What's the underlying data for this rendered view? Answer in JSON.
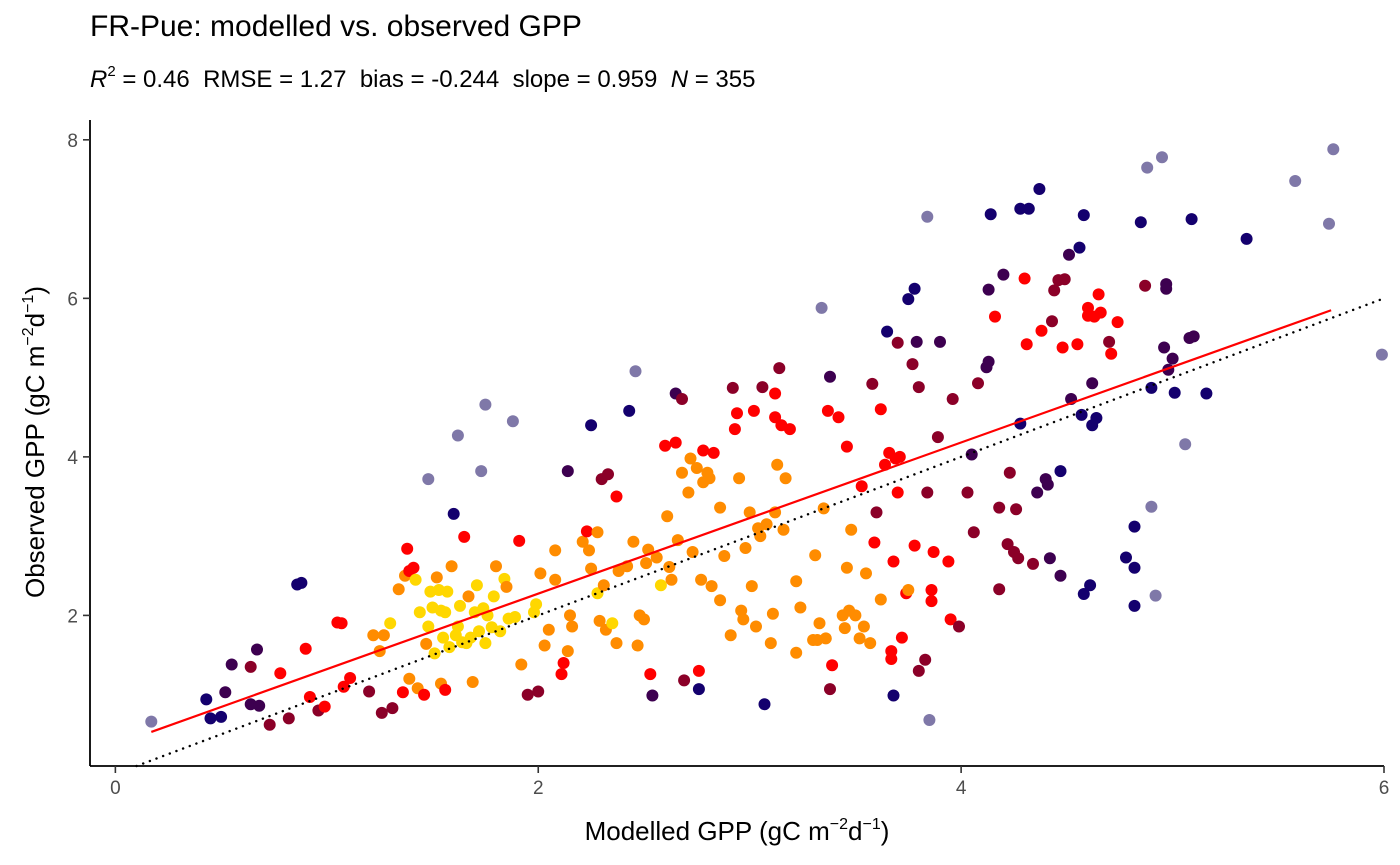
{
  "chart_data": {
    "type": "scatter",
    "title": "FR-Pue: modelled vs. observed GPP",
    "subtitle": {
      "r2_symbol": "R",
      "r2_sup": "2",
      "r2_value": " = 0.46  RMSE = 1.27  bias = -0.244  slope = 0.959  ",
      "n_symbol": "N",
      "n_value": " = 355"
    },
    "xlabel": {
      "text": "Modelled GPP (gC m",
      "sup1": "−2",
      "mid": "d",
      "sup2": "−1",
      "end": ")"
    },
    "ylabel": {
      "text": "Observed GPP (gC m",
      "sup1": "−2",
      "mid": "d",
      "sup2": "−1",
      "end": ")"
    },
    "xlim": [
      -0.12,
      6.0
    ],
    "ylim": [
      0.1,
      8.25
    ],
    "xticks": [
      "0",
      "2",
      "4",
      "6"
    ],
    "yticks": [
      "2",
      "4",
      "6",
      "8"
    ],
    "grid": false,
    "legend": "none",
    "colors": {
      "point_scale": [
        "#FFD700",
        "#FF8C00",
        "#FF0000",
        "#8B0028",
        "#3D0050",
        "#14006E",
        "#7F78A8"
      ],
      "fit_line": "#FF0000",
      "identity_line": "#000000"
    },
    "fit_line": {
      "x": [
        0.17,
        5.75
      ],
      "y": [
        0.53,
        5.85
      ]
    },
    "identity_line": {
      "x": [
        0.0,
        6.0
      ],
      "y": [
        0.0,
        6.0
      ]
    },
    "points": [
      [
        0.17,
        0.66,
        6
      ],
      [
        0.43,
        0.94,
        5
      ],
      [
        0.45,
        0.7,
        5
      ],
      [
        0.5,
        0.72,
        5
      ],
      [
        0.52,
        1.03,
        4
      ],
      [
        0.55,
        1.38,
        4
      ],
      [
        0.64,
        1.35,
        3
      ],
      [
        0.64,
        0.88,
        4
      ],
      [
        0.67,
        1.57,
        4
      ],
      [
        0.68,
        0.86,
        4
      ],
      [
        0.73,
        0.62,
        3
      ],
      [
        0.78,
        1.27,
        2
      ],
      [
        0.82,
        0.7,
        3
      ],
      [
        0.86,
        2.39,
        5
      ],
      [
        0.88,
        2.41,
        5
      ],
      [
        0.9,
        1.58,
        2
      ],
      [
        0.92,
        0.97,
        2
      ],
      [
        0.96,
        0.8,
        3
      ],
      [
        0.99,
        0.85,
        2
      ],
      [
        1.05,
        1.91,
        2
      ],
      [
        1.07,
        1.9,
        2
      ],
      [
        1.08,
        1.1,
        2
      ],
      [
        1.11,
        1.21,
        2
      ],
      [
        1.2,
        1.04,
        3
      ],
      [
        1.22,
        1.75,
        1
      ],
      [
        1.25,
        1.55,
        1
      ],
      [
        1.26,
        0.77,
        3
      ],
      [
        1.27,
        1.75,
        1
      ],
      [
        1.3,
        1.9,
        0
      ],
      [
        1.31,
        0.83,
        3
      ],
      [
        1.34,
        2.33,
        1
      ],
      [
        1.36,
        1.03,
        2
      ],
      [
        1.37,
        2.5,
        1
      ],
      [
        1.38,
        2.84,
        2
      ],
      [
        1.39,
        1.2,
        1
      ],
      [
        1.39,
        2.56,
        2
      ],
      [
        1.41,
        2.6,
        2
      ],
      [
        1.42,
        2.45,
        0
      ],
      [
        1.43,
        1.08,
        1
      ],
      [
        1.44,
        2.04,
        0
      ],
      [
        1.46,
        1.0,
        2
      ],
      [
        1.47,
        1.64,
        1
      ],
      [
        1.48,
        1.86,
        0
      ],
      [
        1.48,
        3.72,
        6
      ],
      [
        1.49,
        2.3,
        0
      ],
      [
        1.5,
        2.1,
        0
      ],
      [
        1.51,
        1.52,
        0
      ],
      [
        1.52,
        2.48,
        1
      ],
      [
        1.53,
        2.32,
        0
      ],
      [
        1.54,
        1.14,
        1
      ],
      [
        1.54,
        2.06,
        0
      ],
      [
        1.55,
        1.72,
        0
      ],
      [
        1.56,
        2.04,
        0
      ],
      [
        1.56,
        1.06,
        2
      ],
      [
        1.57,
        2.3,
        0
      ],
      [
        1.58,
        1.6,
        0
      ],
      [
        1.59,
        2.62,
        1
      ],
      [
        1.6,
        3.28,
        5
      ],
      [
        1.61,
        1.75,
        0
      ],
      [
        1.62,
        4.27,
        6
      ],
      [
        1.62,
        1.86,
        0
      ],
      [
        1.63,
        2.12,
        0
      ],
      [
        1.64,
        1.66,
        0
      ],
      [
        1.65,
        2.99,
        2
      ],
      [
        1.66,
        1.65,
        0
      ],
      [
        1.67,
        2.24,
        1
      ],
      [
        1.68,
        1.72,
        0
      ],
      [
        1.69,
        1.16,
        1
      ],
      [
        1.7,
        2.04,
        0
      ],
      [
        1.71,
        2.38,
        0
      ],
      [
        1.72,
        1.8,
        0
      ],
      [
        1.73,
        3.82,
        6
      ],
      [
        1.74,
        2.09,
        0
      ],
      [
        1.75,
        4.66,
        6
      ],
      [
        1.75,
        1.65,
        0
      ],
      [
        1.76,
        2.0,
        0
      ],
      [
        1.78,
        1.85,
        0
      ],
      [
        1.79,
        2.24,
        0
      ],
      [
        1.8,
        2.62,
        1
      ],
      [
        1.82,
        1.8,
        0
      ],
      [
        1.84,
        2.46,
        0
      ],
      [
        1.85,
        2.36,
        1
      ],
      [
        1.86,
        1.96,
        0
      ],
      [
        1.88,
        4.45,
        6
      ],
      [
        1.89,
        1.98,
        0
      ],
      [
        1.91,
        2.94,
        2
      ],
      [
        1.92,
        1.38,
        1
      ],
      [
        1.95,
        1.0,
        3
      ],
      [
        1.98,
        2.04,
        0
      ],
      [
        1.99,
        2.14,
        0
      ],
      [
        2.0,
        1.04,
        3
      ],
      [
        2.01,
        2.53,
        1
      ],
      [
        2.03,
        1.62,
        1
      ],
      [
        2.05,
        1.82,
        1
      ],
      [
        2.08,
        2.45,
        1
      ],
      [
        2.08,
        2.82,
        1
      ],
      [
        2.11,
        1.26,
        2
      ],
      [
        2.12,
        1.4,
        2
      ],
      [
        2.14,
        3.82,
        4
      ],
      [
        2.14,
        1.55,
        1
      ],
      [
        2.15,
        2.0,
        1
      ],
      [
        2.16,
        1.86,
        1
      ],
      [
        2.21,
        2.93,
        1
      ],
      [
        2.23,
        3.06,
        2
      ],
      [
        2.24,
        2.82,
        1
      ],
      [
        2.25,
        4.4,
        5
      ],
      [
        2.25,
        2.59,
        1
      ],
      [
        2.28,
        3.05,
        1
      ],
      [
        2.28,
        2.28,
        0
      ],
      [
        2.29,
        1.93,
        1
      ],
      [
        2.3,
        3.72,
        3
      ],
      [
        2.31,
        2.38,
        1
      ],
      [
        2.32,
        1.82,
        1
      ],
      [
        2.33,
        3.78,
        3
      ],
      [
        2.35,
        1.9,
        0
      ],
      [
        2.37,
        3.5,
        2
      ],
      [
        2.37,
        1.65,
        1
      ],
      [
        2.38,
        2.56,
        1
      ],
      [
        2.42,
        2.62,
        1
      ],
      [
        2.43,
        4.58,
        5
      ],
      [
        2.45,
        2.93,
        1
      ],
      [
        2.46,
        5.08,
        6
      ],
      [
        2.47,
        1.62,
        1
      ],
      [
        2.48,
        2.0,
        1
      ],
      [
        2.5,
        1.95,
        1
      ],
      [
        2.51,
        2.66,
        1
      ],
      [
        2.52,
        2.83,
        1
      ],
      [
        2.53,
        1.26,
        2
      ],
      [
        2.54,
        0.99,
        4
      ],
      [
        2.56,
        2.73,
        1
      ],
      [
        2.58,
        2.38,
        0
      ],
      [
        2.6,
        4.14,
        2
      ],
      [
        2.61,
        3.25,
        1
      ],
      [
        2.62,
        2.61,
        1
      ],
      [
        2.63,
        2.45,
        1
      ],
      [
        2.65,
        4.18,
        2
      ],
      [
        2.65,
        4.8,
        4
      ],
      [
        2.66,
        2.95,
        1
      ],
      [
        2.68,
        3.8,
        1
      ],
      [
        2.68,
        4.73,
        3
      ],
      [
        2.69,
        1.18,
        3
      ],
      [
        2.71,
        3.55,
        1
      ],
      [
        2.72,
        3.98,
        1
      ],
      [
        2.73,
        2.8,
        1
      ],
      [
        2.75,
        3.86,
        1
      ],
      [
        2.76,
        1.3,
        2
      ],
      [
        2.76,
        1.07,
        5
      ],
      [
        2.77,
        2.45,
        1
      ],
      [
        2.78,
        3.68,
        1
      ],
      [
        2.78,
        4.08,
        2
      ],
      [
        2.8,
        3.8,
        1
      ],
      [
        2.81,
        3.73,
        1
      ],
      [
        2.82,
        2.37,
        1
      ],
      [
        2.83,
        4.05,
        2
      ],
      [
        2.86,
        3.36,
        1
      ],
      [
        2.86,
        2.19,
        1
      ],
      [
        2.88,
        2.75,
        1
      ],
      [
        2.91,
        1.75,
        1
      ],
      [
        2.92,
        4.87,
        3
      ],
      [
        2.93,
        4.35,
        2
      ],
      [
        2.94,
        4.55,
        2
      ],
      [
        2.95,
        3.73,
        1
      ],
      [
        2.96,
        2.06,
        1
      ],
      [
        2.97,
        1.95,
        1
      ],
      [
        2.98,
        2.85,
        1
      ],
      [
        3.0,
        3.3,
        1
      ],
      [
        3.01,
        2.37,
        1
      ],
      [
        3.02,
        4.58,
        2
      ],
      [
        3.03,
        1.86,
        1
      ],
      [
        3.04,
        3.1,
        1
      ],
      [
        3.05,
        3.0,
        1
      ],
      [
        3.06,
        4.88,
        3
      ],
      [
        3.07,
        0.88,
        5
      ],
      [
        3.08,
        3.15,
        1
      ],
      [
        3.1,
        1.65,
        1
      ],
      [
        3.11,
        2.02,
        1
      ],
      [
        3.12,
        4.8,
        2
      ],
      [
        3.12,
        4.5,
        2
      ],
      [
        3.12,
        3.3,
        1
      ],
      [
        3.13,
        3.9,
        1
      ],
      [
        3.14,
        5.12,
        3
      ],
      [
        3.15,
        4.4,
        2
      ],
      [
        3.16,
        3.08,
        1
      ],
      [
        3.17,
        3.73,
        1
      ],
      [
        3.19,
        4.35,
        2
      ],
      [
        3.22,
        2.43,
        1
      ],
      [
        3.22,
        1.53,
        1
      ],
      [
        3.24,
        2.1,
        1
      ],
      [
        3.3,
        1.69,
        1
      ],
      [
        3.31,
        2.76,
        1
      ],
      [
        3.32,
        1.69,
        1
      ],
      [
        3.33,
        1.9,
        1
      ],
      [
        3.34,
        5.88,
        6
      ],
      [
        3.35,
        3.35,
        1
      ],
      [
        3.36,
        1.71,
        1
      ],
      [
        3.37,
        4.58,
        2
      ],
      [
        3.38,
        5.01,
        4
      ],
      [
        3.38,
        1.07,
        3
      ],
      [
        3.39,
        1.37,
        2
      ],
      [
        3.42,
        4.5,
        2
      ],
      [
        3.44,
        2.0,
        1
      ],
      [
        3.45,
        1.84,
        1
      ],
      [
        3.46,
        2.6,
        1
      ],
      [
        3.46,
        4.13,
        2
      ],
      [
        3.47,
        2.06,
        1
      ],
      [
        3.48,
        3.08,
        1
      ],
      [
        3.5,
        2.0,
        1
      ],
      [
        3.52,
        1.71,
        1
      ],
      [
        3.53,
        3.63,
        2
      ],
      [
        3.54,
        1.86,
        1
      ],
      [
        3.55,
        2.53,
        1
      ],
      [
        3.57,
        1.65,
        1
      ],
      [
        3.58,
        4.92,
        3
      ],
      [
        3.59,
        2.92,
        2
      ],
      [
        3.6,
        3.3,
        3
      ],
      [
        3.62,
        2.2,
        1
      ],
      [
        3.62,
        4.6,
        2
      ],
      [
        3.64,
        3.9,
        2
      ],
      [
        3.65,
        5.58,
        5
      ],
      [
        3.66,
        4.05,
        2
      ],
      [
        3.67,
        1.55,
        2
      ],
      [
        3.67,
        1.45,
        2
      ],
      [
        3.68,
        2.68,
        2
      ],
      [
        3.68,
        0.99,
        5
      ],
      [
        3.69,
        3.98,
        2
      ],
      [
        3.7,
        5.44,
        3
      ],
      [
        3.7,
        3.55,
        2
      ],
      [
        3.71,
        4.0,
        2
      ],
      [
        3.72,
        1.72,
        2
      ],
      [
        3.74,
        2.28,
        2
      ],
      [
        3.75,
        5.99,
        5
      ],
      [
        3.75,
        2.32,
        1
      ],
      [
        3.77,
        5.17,
        3
      ],
      [
        3.78,
        2.88,
        2
      ],
      [
        3.78,
        6.12,
        5
      ],
      [
        3.79,
        5.45,
        4
      ],
      [
        3.8,
        1.3,
        3
      ],
      [
        3.8,
        4.88,
        3
      ],
      [
        3.83,
        1.44,
        3
      ],
      [
        3.84,
        3.55,
        3
      ],
      [
        3.84,
        7.03,
        6
      ],
      [
        3.85,
        0.68,
        6
      ],
      [
        3.86,
        2.32,
        2
      ],
      [
        3.86,
        2.18,
        2
      ],
      [
        3.87,
        2.8,
        2
      ],
      [
        3.89,
        4.25,
        3
      ],
      [
        3.9,
        5.45,
        4
      ],
      [
        3.94,
        2.68,
        2
      ],
      [
        3.95,
        1.95,
        2
      ],
      [
        3.96,
        4.73,
        3
      ],
      [
        3.99,
        1.86,
        3
      ],
      [
        4.03,
        3.55,
        3
      ],
      [
        4.05,
        4.03,
        4
      ],
      [
        4.06,
        3.05,
        3
      ],
      [
        4.08,
        4.93,
        3
      ],
      [
        4.12,
        5.13,
        4
      ],
      [
        4.13,
        6.11,
        4
      ],
      [
        4.13,
        5.2,
        4
      ],
      [
        4.14,
        7.06,
        5
      ],
      [
        4.16,
        5.77,
        2
      ],
      [
        4.18,
        2.33,
        3
      ],
      [
        4.18,
        3.36,
        3
      ],
      [
        4.2,
        6.3,
        4
      ],
      [
        4.22,
        2.9,
        3
      ],
      [
        4.23,
        3.8,
        3
      ],
      [
        4.25,
        2.8,
        3
      ],
      [
        4.26,
        3.34,
        3
      ],
      [
        4.27,
        2.72,
        3
      ],
      [
        4.28,
        4.42,
        5
      ],
      [
        4.28,
        7.13,
        5
      ],
      [
        4.3,
        6.25,
        2
      ],
      [
        4.31,
        5.42,
        2
      ],
      [
        4.32,
        7.13,
        5
      ],
      [
        4.34,
        2.65,
        3
      ],
      [
        4.36,
        3.55,
        4
      ],
      [
        4.37,
        7.38,
        5
      ],
      [
        4.38,
        5.59,
        2
      ],
      [
        4.4,
        3.72,
        4
      ],
      [
        4.41,
        3.65,
        4
      ],
      [
        4.42,
        2.72,
        4
      ],
      [
        4.43,
        5.71,
        3
      ],
      [
        4.44,
        6.1,
        3
      ],
      [
        4.46,
        6.23,
        3
      ],
      [
        4.47,
        3.82,
        5
      ],
      [
        4.47,
        2.5,
        4
      ],
      [
        4.48,
        5.38,
        2
      ],
      [
        4.49,
        6.24,
        3
      ],
      [
        4.51,
        6.55,
        4
      ],
      [
        4.52,
        4.73,
        4
      ],
      [
        4.55,
        5.42,
        2
      ],
      [
        4.56,
        6.64,
        5
      ],
      [
        4.57,
        4.53,
        5
      ],
      [
        4.58,
        2.27,
        5
      ],
      [
        4.58,
        7.05,
        5
      ],
      [
        4.6,
        5.88,
        2
      ],
      [
        4.6,
        5.78,
        2
      ],
      [
        4.61,
        2.38,
        5
      ],
      [
        4.62,
        4.4,
        5
      ],
      [
        4.62,
        4.93,
        4
      ],
      [
        4.63,
        5.77,
        2
      ],
      [
        4.64,
        4.49,
        5
      ],
      [
        4.65,
        6.05,
        2
      ],
      [
        4.66,
        5.82,
        2
      ],
      [
        4.7,
        5.45,
        3
      ],
      [
        4.71,
        5.3,
        2
      ],
      [
        4.74,
        5.7,
        2
      ],
      [
        4.78,
        2.73,
        5
      ],
      [
        4.82,
        2.6,
        5
      ],
      [
        4.82,
        2.12,
        5
      ],
      [
        4.82,
        3.12,
        5
      ],
      [
        4.85,
        6.96,
        5
      ],
      [
        4.87,
        6.16,
        3
      ],
      [
        4.88,
        7.65,
        6
      ],
      [
        4.9,
        4.87,
        5
      ],
      [
        4.9,
        3.37,
        6
      ],
      [
        4.92,
        2.25,
        6
      ],
      [
        4.95,
        7.78,
        6
      ],
      [
        4.96,
        5.38,
        4
      ],
      [
        4.97,
        6.18,
        4
      ],
      [
        4.97,
        6.12,
        4
      ],
      [
        4.98,
        5.1,
        4
      ],
      [
        5.0,
        5.24,
        4
      ],
      [
        5.01,
        4.81,
        5
      ],
      [
        5.06,
        4.16,
        6
      ],
      [
        5.08,
        5.5,
        4
      ],
      [
        5.09,
        7.0,
        5
      ],
      [
        5.1,
        5.52,
        4
      ],
      [
        5.16,
        4.8,
        5
      ],
      [
        5.35,
        6.75,
        5
      ],
      [
        5.58,
        7.48,
        6
      ],
      [
        5.74,
        6.94,
        6
      ],
      [
        5.76,
        7.88,
        6
      ],
      [
        5.99,
        5.29,
        6
      ]
    ]
  }
}
